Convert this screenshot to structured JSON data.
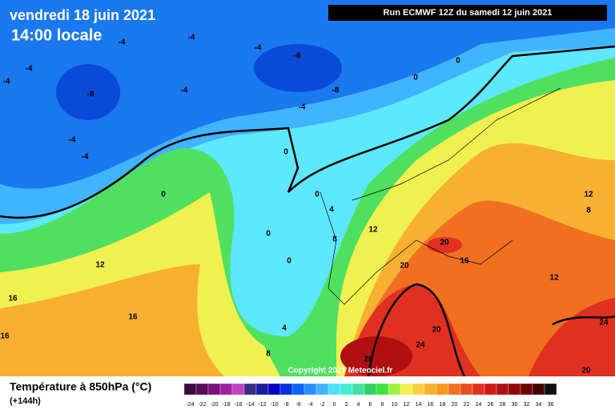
{
  "header": {
    "date": "vendredi 18 juin 2021",
    "time": "14:00 locale",
    "run": "Run ECMWF 12Z du samedi 12 juin 2021"
  },
  "map": {
    "contour_labels": [
      -4,
      -4,
      -4,
      -4,
      -4,
      -8,
      -8,
      -8,
      -4,
      -4,
      -4,
      -4,
      0,
      0,
      0,
      0,
      0,
      4,
      0,
      0,
      8,
      12,
      12,
      12,
      8,
      20,
      16,
      20,
      12,
      16,
      16,
      4,
      20,
      24,
      24,
      28,
      8,
      20,
      16
    ],
    "copyright": "Copyright 2021 Meteociel.fr"
  },
  "legend": {
    "title": "Température à 850hPa (°C)",
    "subtitle": "(+144h)",
    "scale": [
      -24,
      -22,
      -20,
      -18,
      -16,
      -14,
      -12,
      -10,
      -8,
      -6,
      -4,
      -2,
      0,
      2,
      4,
      6,
      8,
      10,
      12,
      14,
      16,
      18,
      20,
      22,
      24,
      26,
      28,
      30,
      32,
      34,
      36
    ],
    "colors": [
      "#3d0a3d",
      "#5a0a5a",
      "#7b0f7b",
      "#a020a0",
      "#c040c0",
      "#3a2a8a",
      "#1a1a9a",
      "#0000c8",
      "#0030e0",
      "#1060ff",
      "#2c8cff",
      "#40b4ff",
      "#50e0ff",
      "#40f0d0",
      "#40e0a0",
      "#30d060",
      "#40e040",
      "#a0f040",
      "#f0f050",
      "#f8d040",
      "#f8b030",
      "#f89820",
      "#f07020",
      "#e85020",
      "#e03020",
      "#d01818",
      "#b01010",
      "#900808",
      "#700000",
      "#480000",
      "#101010"
    ]
  }
}
